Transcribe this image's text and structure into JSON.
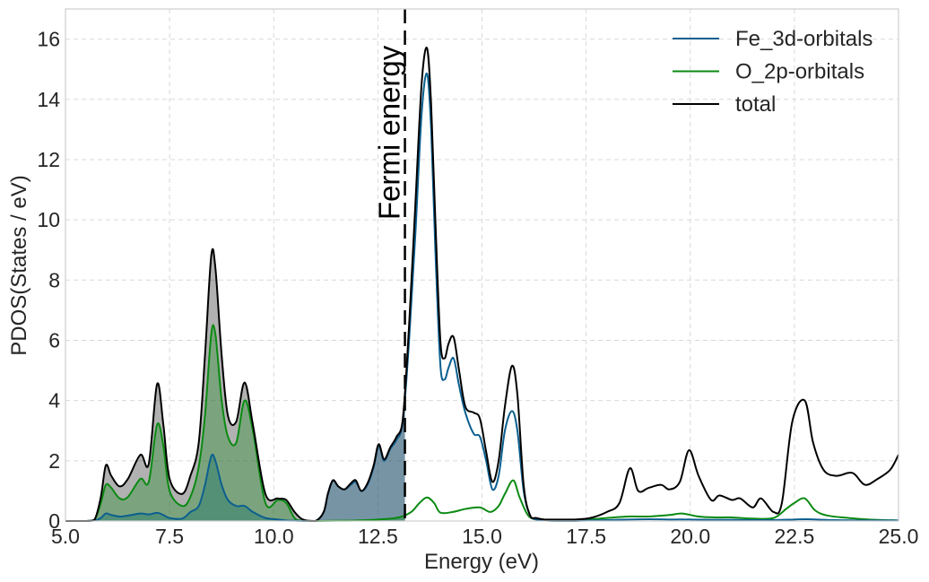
{
  "chart_data": {
    "type": "line",
    "title": "",
    "xlabel": "Energy (eV)",
    "ylabel": "PDOS(States / eV)",
    "xlim": [
      5.0,
      25.0
    ],
    "ylim": [
      0,
      17
    ],
    "xticks": [
      5.0,
      7.5,
      10.0,
      12.5,
      15.0,
      17.5,
      20.0,
      22.5,
      25.0
    ],
    "xtick_labels": [
      "5.0",
      "7.5",
      "10.0",
      "12.5",
      "15.0",
      "17.5",
      "20.0",
      "22.5",
      "25.0"
    ],
    "yticks": [
      0,
      2,
      4,
      6,
      8,
      10,
      12,
      14,
      16
    ],
    "ytick_labels": [
      "0",
      "2",
      "4",
      "6",
      "8",
      "10",
      "12",
      "14",
      "16"
    ],
    "grid": true,
    "legend_position": "top-right",
    "fermi_energy": 13.15,
    "annotation": "Fermi energy",
    "series": [
      {
        "name": "Fe_3d-orbitals",
        "color": "#0c5f8f",
        "fill_below_fermi": true,
        "x": [
          5.0,
          5.5,
          5.7,
          5.85,
          5.97,
          6.1,
          6.3,
          6.5,
          6.8,
          7.0,
          7.2,
          7.35,
          7.5,
          7.8,
          8.0,
          8.2,
          8.35,
          8.5,
          8.6,
          8.75,
          8.9,
          9.1,
          9.3,
          9.5,
          9.8,
          10.1,
          10.3,
          10.5,
          10.7,
          11.0,
          11.2,
          11.3,
          11.42,
          11.55,
          11.7,
          11.85,
          11.97,
          12.1,
          12.25,
          12.4,
          12.52,
          12.65,
          12.8,
          12.95,
          13.1,
          13.25,
          13.4,
          13.55,
          13.68,
          13.78,
          13.88,
          14.0,
          14.1,
          14.2,
          14.32,
          14.45,
          14.6,
          14.8,
          14.95,
          15.1,
          15.25,
          15.4,
          15.55,
          15.72,
          15.85,
          16.0,
          16.15,
          16.3,
          16.5,
          16.8,
          17.2,
          17.6,
          18.0,
          18.5,
          19.0,
          19.5,
          20.0,
          20.5,
          21.0,
          21.5,
          22.0,
          22.5,
          22.8,
          23.2,
          23.5,
          24.0,
          24.5,
          25.0
        ],
        "values": [
          0.0,
          0.0,
          0.02,
          0.1,
          0.25,
          0.2,
          0.15,
          0.18,
          0.25,
          0.22,
          0.27,
          0.2,
          0.1,
          0.08,
          0.3,
          0.5,
          1.2,
          2.15,
          2.0,
          1.2,
          0.7,
          0.5,
          0.5,
          0.3,
          0.1,
          0.05,
          0.02,
          0.01,
          0.0,
          0.0,
          0.3,
          0.9,
          1.35,
          1.15,
          1.05,
          1.2,
          1.3,
          1.0,
          1.2,
          1.8,
          2.5,
          2.0,
          2.4,
          2.7,
          3.3,
          6.0,
          9.5,
          13.5,
          14.85,
          13.0,
          9.0,
          5.2,
          4.7,
          5.1,
          5.4,
          4.5,
          3.6,
          2.9,
          2.8,
          2.0,
          1.05,
          1.5,
          3.0,
          3.65,
          3.0,
          1.0,
          0.2,
          0.05,
          0.02,
          0.0,
          0.0,
          0.02,
          0.03,
          0.05,
          0.06,
          0.05,
          0.05,
          0.04,
          0.04,
          0.03,
          0.03,
          0.05,
          0.06,
          0.04,
          0.03,
          0.02,
          0.02,
          0.02
        ]
      },
      {
        "name": "O_2p-orbitals",
        "color": "#0a8a12",
        "fill_below_fermi": true,
        "x": [
          5.0,
          5.5,
          5.7,
          5.85,
          5.97,
          6.1,
          6.3,
          6.5,
          6.8,
          7.0,
          7.2,
          7.35,
          7.5,
          7.8,
          8.0,
          8.2,
          8.35,
          8.5,
          8.6,
          8.75,
          8.9,
          9.1,
          9.3,
          9.5,
          9.8,
          10.1,
          10.3,
          10.5,
          10.7,
          11.0,
          11.5,
          12.0,
          12.5,
          13.0,
          13.3,
          13.5,
          13.68,
          13.85,
          14.0,
          14.3,
          14.6,
          14.95,
          15.2,
          15.4,
          15.55,
          15.75,
          15.9,
          16.1,
          16.3,
          16.6,
          17.0,
          17.5,
          18.0,
          18.5,
          19.0,
          19.5,
          19.8,
          20.2,
          20.6,
          21.0,
          21.5,
          22.0,
          22.3,
          22.5,
          22.75,
          23.0,
          23.3,
          23.8,
          24.3,
          25.0
        ],
        "values": [
          0.0,
          0.0,
          0.05,
          0.6,
          1.2,
          1.1,
          0.75,
          0.8,
          1.4,
          1.3,
          3.2,
          2.5,
          1.0,
          0.5,
          0.8,
          1.8,
          3.5,
          6.2,
          6.2,
          4.0,
          2.8,
          2.6,
          4.0,
          3.0,
          0.6,
          0.7,
          0.6,
          0.1,
          0.01,
          0.0,
          0.01,
          0.02,
          0.05,
          0.12,
          0.3,
          0.6,
          0.78,
          0.6,
          0.28,
          0.3,
          0.4,
          0.45,
          0.3,
          0.5,
          0.9,
          1.35,
          0.8,
          0.2,
          0.05,
          0.02,
          0.02,
          0.05,
          0.1,
          0.15,
          0.15,
          0.2,
          0.25,
          0.15,
          0.12,
          0.12,
          0.08,
          0.1,
          0.4,
          0.6,
          0.75,
          0.35,
          0.18,
          0.1,
          0.05,
          0.02
        ]
      },
      {
        "name": "total",
        "color": "#000000",
        "fill_below_fermi": true,
        "x": [
          5.0,
          5.5,
          5.7,
          5.85,
          5.97,
          6.1,
          6.3,
          6.5,
          6.8,
          7.0,
          7.2,
          7.35,
          7.5,
          7.8,
          8.0,
          8.2,
          8.35,
          8.5,
          8.6,
          8.75,
          8.9,
          9.1,
          9.3,
          9.5,
          9.8,
          10.1,
          10.3,
          10.5,
          10.7,
          11.0,
          11.2,
          11.3,
          11.42,
          11.55,
          11.7,
          11.85,
          11.97,
          12.1,
          12.25,
          12.4,
          12.52,
          12.65,
          12.8,
          12.95,
          13.1,
          13.25,
          13.4,
          13.55,
          13.68,
          13.78,
          13.88,
          14.0,
          14.1,
          14.2,
          14.32,
          14.45,
          14.6,
          14.8,
          14.95,
          15.1,
          15.25,
          15.4,
          15.55,
          15.72,
          15.85,
          16.0,
          16.15,
          16.3,
          16.5,
          16.8,
          17.2,
          17.6,
          18.0,
          18.3,
          18.55,
          18.75,
          19.0,
          19.3,
          19.5,
          19.75,
          19.97,
          20.2,
          20.5,
          20.7,
          21.0,
          21.2,
          21.5,
          21.7,
          22.0,
          22.2,
          22.45,
          22.75,
          22.95,
          23.2,
          23.5,
          23.8,
          23.95,
          24.2,
          24.5,
          24.8,
          25.0
        ],
        "values": [
          0.0,
          0.0,
          0.05,
          0.8,
          1.85,
          1.5,
          1.15,
          1.4,
          2.2,
          1.9,
          4.55,
          3.2,
          1.4,
          0.9,
          1.5,
          2.6,
          5.5,
          8.8,
          8.4,
          5.5,
          3.5,
          3.3,
          4.6,
          3.2,
          0.9,
          0.75,
          0.7,
          0.3,
          0.05,
          0.0,
          0.3,
          0.9,
          1.35,
          1.15,
          1.05,
          1.25,
          1.35,
          1.0,
          1.25,
          1.85,
          2.55,
          2.05,
          2.45,
          2.8,
          3.4,
          6.5,
          10.5,
          14.5,
          15.7,
          13.8,
          10.0,
          6.0,
          5.4,
          5.9,
          6.1,
          5.0,
          3.8,
          3.6,
          3.4,
          2.3,
          1.3,
          2.0,
          3.8,
          5.15,
          4.2,
          1.2,
          0.2,
          0.1,
          0.05,
          0.05,
          0.05,
          0.1,
          0.3,
          0.6,
          1.75,
          1.0,
          1.1,
          1.2,
          1.05,
          1.3,
          2.35,
          1.5,
          0.7,
          0.85,
          0.7,
          0.75,
          0.45,
          0.75,
          0.3,
          0.6,
          3.3,
          4.0,
          2.6,
          1.7,
          1.5,
          1.6,
          1.55,
          1.2,
          1.4,
          1.7,
          2.2
        ]
      }
    ]
  }
}
